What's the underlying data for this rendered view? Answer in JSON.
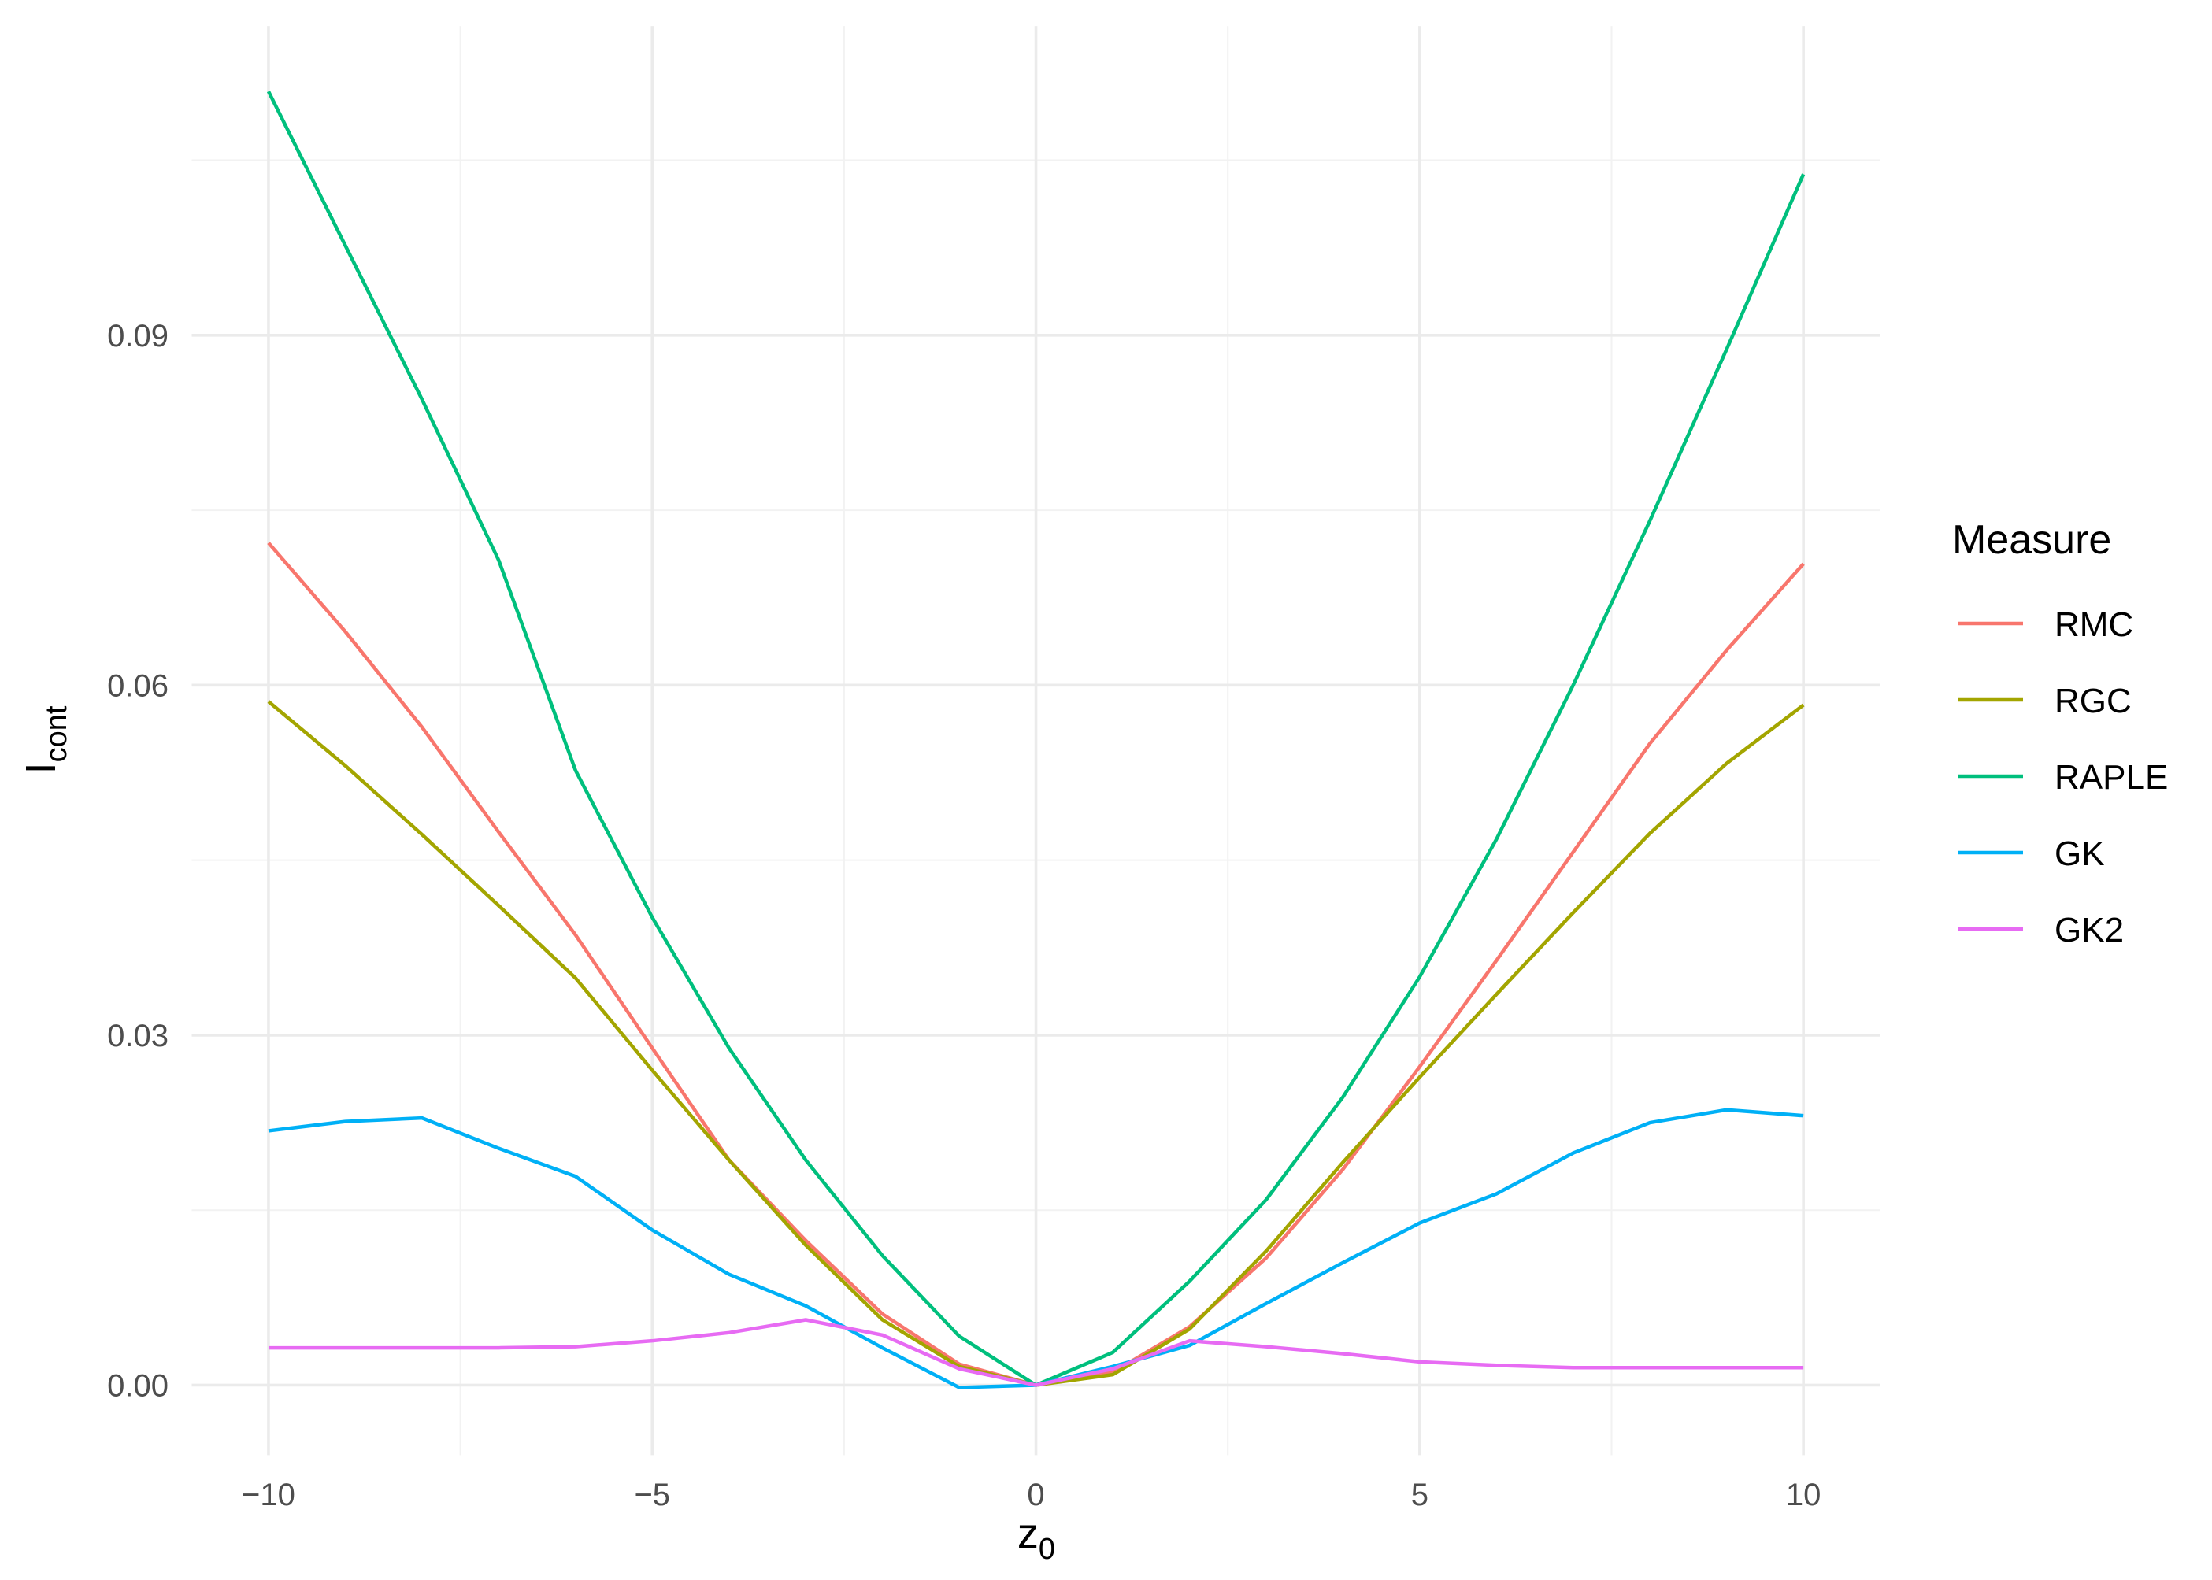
{
  "chart_data": {
    "type": "line",
    "x_label": {
      "text": "z",
      "subscript": "0"
    },
    "y_label": {
      "text": "I",
      "subscript": "cont"
    },
    "legend_title": "Measure",
    "legend_position": "right",
    "grid": true,
    "x": [
      -10,
      -9,
      -8,
      -7,
      -6,
      -5,
      -4,
      -3,
      -2,
      -1,
      0,
      1,
      2,
      3,
      4,
      5,
      6,
      7,
      8,
      9,
      10
    ],
    "xlim": [
      -11,
      11
    ],
    "xticks": [
      {
        "value": -10,
        "label": "−10"
      },
      {
        "value": -5,
        "label": "−5"
      },
      0,
      5,
      10
    ],
    "x_minor_ticks": [
      -7.5,
      -2.5,
      2.5,
      7.5
    ],
    "ylim": [
      -0.006,
      0.1165
    ],
    "yticks": [
      {
        "value": 0,
        "label": "0.00"
      },
      0.03,
      0.06,
      0.09
    ],
    "y_minor_ticks": [
      0.015,
      0.045,
      0.075,
      0.105
    ],
    "series": [
      {
        "name": "RMC",
        "color": "#F8766D",
        "values": [
          0.0722,
          0.0646,
          0.0564,
          0.0474,
          0.0386,
          0.0289,
          0.0193,
          0.0124,
          0.0061,
          0.0018,
          0,
          0.0011,
          0.005,
          0.0109,
          0.0185,
          0.0273,
          0.0364,
          0.0457,
          0.055,
          0.063,
          0.0704
        ]
      },
      {
        "name": "RGC",
        "color": "#A3A500",
        "values": [
          0.0586,
          0.0531,
          0.0472,
          0.0411,
          0.0349,
          0.027,
          0.0193,
          0.012,
          0.0056,
          0.0016,
          0,
          0.0009,
          0.0048,
          0.0115,
          0.0191,
          0.0264,
          0.0335,
          0.0405,
          0.0473,
          0.0533,
          0.0583
        ]
      },
      {
        "name": "RAPLE",
        "color": "#00BF7D",
        "values": [
          0.1109,
          0.0977,
          0.0845,
          0.0707,
          0.0527,
          0.0401,
          0.0289,
          0.0193,
          0.0111,
          0.0042,
          0,
          0.0028,
          0.0089,
          0.0159,
          0.0247,
          0.035,
          0.0468,
          0.06,
          0.0741,
          0.0888,
          0.1038
        ]
      },
      {
        "name": "GK",
        "color": "#00B0F6",
        "values": [
          0.0218,
          0.0226,
          0.0229,
          0.0203,
          0.0179,
          0.0133,
          0.0095,
          0.0068,
          0.0032,
          -0.0002,
          0,
          0.0016,
          0.0034,
          0.007,
          0.0105,
          0.0139,
          0.0164,
          0.0199,
          0.0225,
          0.0236,
          0.0231
        ]
      },
      {
        "name": "GK2",
        "color": "#E76BF3",
        "values": [
          0.0032,
          0.0032,
          0.0032,
          0.0032,
          0.0033,
          0.0038,
          0.0045,
          0.0056,
          0.0043,
          0.0014,
          0,
          0.0014,
          0.0038,
          0.0033,
          0.0027,
          0.002,
          0.0017,
          0.0015,
          0.0015,
          0.0015,
          0.0015
        ]
      }
    ]
  }
}
